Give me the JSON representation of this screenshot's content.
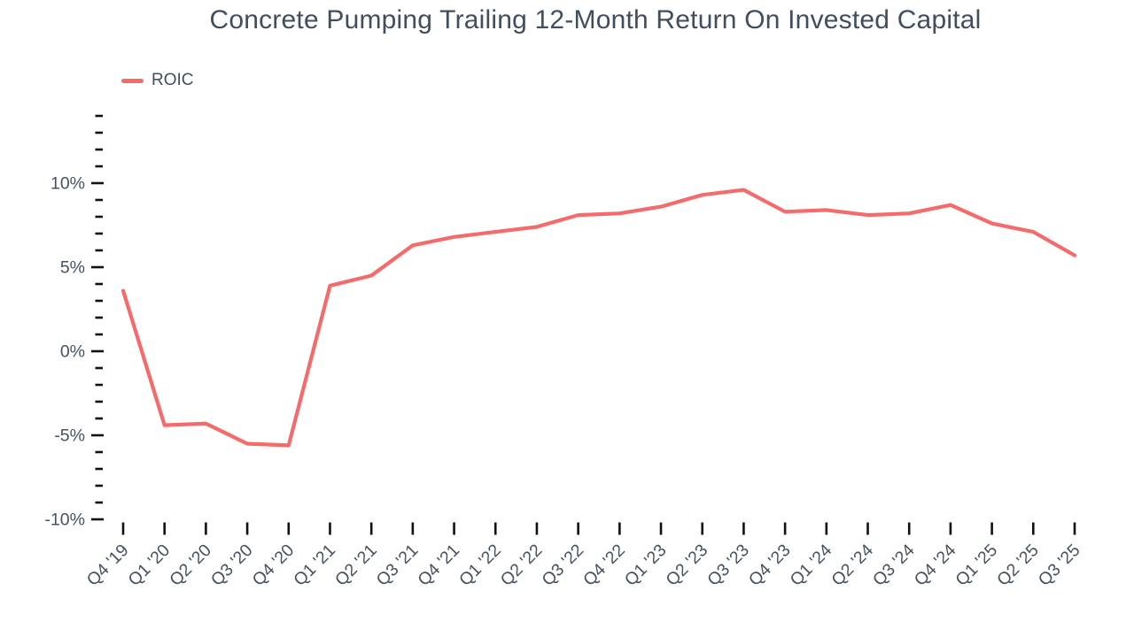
{
  "title": "Concrete Pumping Trailing 12-Month Return On Invested Capital",
  "legend": {
    "items": [
      {
        "label": "ROIC",
        "color": "#f56b6b"
      }
    ]
  },
  "colors": {
    "series_line": "#f56b6b",
    "tick": "#111111",
    "axis_text": "#46525f",
    "title_text": "#414e5e",
    "background": "#ffffff"
  },
  "chart_data": {
    "type": "line",
    "title": "Concrete Pumping Trailing 12-Month Return On Invested Capital",
    "xlabel": "",
    "ylabel": "",
    "unit": "%",
    "grid": false,
    "legend_position": "top-left",
    "ylim": [
      -10,
      14
    ],
    "y_minor_tick_step": 1,
    "y_axis_ticks": [
      {
        "value": 10,
        "label": "10%"
      },
      {
        "value": 5,
        "label": "5%"
      },
      {
        "value": 0,
        "label": "0%"
      },
      {
        "value": -5,
        "label": "-5%"
      },
      {
        "value": -10,
        "label": "-10%"
      }
    ],
    "categories": [
      "Q4 '19",
      "Q1 '20",
      "Q2 '20",
      "Q3 '20",
      "Q4 '20",
      "Q1 '21",
      "Q2 '21",
      "Q3 '21",
      "Q4 '21",
      "Q1 '22",
      "Q2 '22",
      "Q3 '22",
      "Q4 '22",
      "Q1 '23",
      "Q2 '23",
      "Q3 '23",
      "Q4 '23",
      "Q1 '24",
      "Q2 '24",
      "Q3 '24",
      "Q4 '24",
      "Q1 '25",
      "Q2 '25",
      "Q3 '25"
    ],
    "series": [
      {
        "name": "ROIC",
        "color": "#f56b6b",
        "values": [
          3.6,
          -4.4,
          -4.3,
          -5.5,
          -5.6,
          3.9,
          4.5,
          6.3,
          6.8,
          7.1,
          7.4,
          8.1,
          8.2,
          8.6,
          9.3,
          9.6,
          8.3,
          8.4,
          8.1,
          8.2,
          8.7,
          7.6,
          7.1,
          5.7
        ]
      }
    ]
  }
}
